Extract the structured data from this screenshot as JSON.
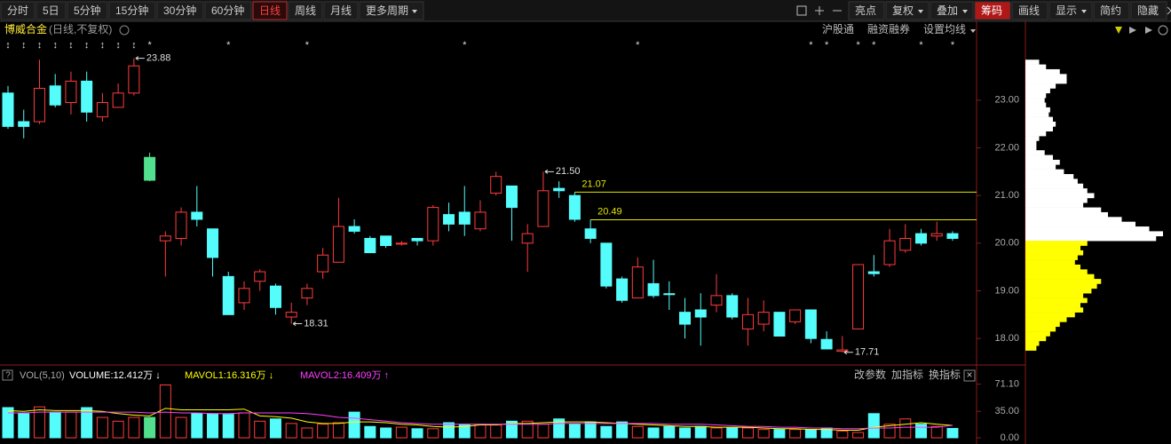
{
  "toolbar": {
    "periods": [
      "分时",
      "5日",
      "5分钟",
      "15分钟",
      "30分钟",
      "60分钟",
      "日线",
      "周线",
      "月线",
      "更多周期"
    ],
    "active_period": 6,
    "tools": [
      "亮点",
      "复权",
      "叠加",
      "筹码",
      "画线",
      "显示",
      "简约",
      "隐藏"
    ],
    "tool_dropdowns": [
      1,
      2,
      5
    ],
    "active_tool": 3
  },
  "header": {
    "stock": "博威合金",
    "mode": "(日线,不复权)",
    "links": [
      "沪股通",
      "融资融券",
      "设置均线"
    ]
  },
  "chart_data": [
    {
      "type": "candlestick",
      "up_color": "#ff3c3c",
      "down_color": "#54fcfc",
      "special_colors": {
        "9": "#52e08e"
      },
      "open": [
        23.15,
        22.55,
        22.55,
        23.3,
        22.95,
        23.4,
        22.65,
        22.85,
        23.15,
        21.8,
        20.05,
        20.1,
        20.65,
        20.3,
        19.3,
        18.75,
        19.2,
        19.1,
        18.45,
        18.85,
        19.4,
        19.6,
        20.35,
        20.1,
        20.15,
        19.98,
        20.1,
        20.05,
        20.6,
        20.65,
        20.3,
        21.05,
        21.2,
        20.0,
        20.35,
        21.15,
        21.0,
        20.3,
        20.0,
        19.25,
        18.85,
        19.15,
        18.94,
        18.55,
        18.6,
        18.7,
        18.9,
        18.2,
        18.3,
        18.55,
        18.35,
        18.6,
        17.98,
        17.73,
        18.2,
        19.4,
        19.55,
        19.85,
        20.2,
        20.15,
        20.2
      ],
      "high": [
        23.3,
        22.8,
        23.85,
        23.55,
        23.6,
        23.6,
        23.15,
        23.35,
        23.88,
        21.9,
        20.25,
        20.75,
        21.2,
        20.3,
        19.4,
        19.2,
        19.45,
        19.15,
        18.75,
        19.15,
        19.9,
        20.95,
        20.5,
        20.15,
        20.15,
        20.05,
        20.1,
        20.8,
        20.85,
        21.2,
        20.9,
        21.5,
        21.2,
        20.4,
        21.5,
        21.3,
        21.07,
        20.49,
        20.0,
        19.3,
        19.7,
        19.65,
        19.2,
        18.85,
        18.95,
        19.35,
        18.95,
        18.85,
        18.8,
        18.55,
        18.6,
        18.6,
        18.15,
        18.05,
        19.55,
        19.75,
        20.3,
        20.4,
        20.3,
        20.45,
        20.25
      ],
      "low": [
        22.4,
        22.2,
        22.5,
        22.85,
        22.7,
        22.55,
        22.55,
        22.85,
        23.1,
        21.3,
        19.3,
        19.95,
        20.35,
        19.3,
        18.5,
        18.6,
        19.0,
        18.5,
        18.31,
        18.7,
        19.25,
        19.6,
        20.2,
        19.8,
        19.9,
        19.95,
        19.95,
        19.95,
        20.25,
        20.15,
        20.25,
        21.0,
        20.05,
        19.4,
        20.35,
        20.95,
        20.45,
        20.0,
        19.05,
        18.75,
        18.85,
        18.85,
        18.6,
        18.0,
        17.85,
        18.55,
        18.4,
        17.85,
        18.15,
        18.05,
        18.3,
        17.9,
        17.78,
        17.71,
        18.2,
        19.3,
        19.5,
        19.8,
        19.95,
        20.05,
        20.05
      ],
      "close": [
        22.45,
        22.45,
        23.25,
        22.9,
        23.4,
        22.75,
        22.95,
        23.15,
        23.72,
        21.32,
        20.15,
        20.65,
        20.5,
        19.7,
        18.5,
        19.05,
        19.4,
        18.65,
        18.55,
        19.05,
        19.75,
        20.35,
        20.25,
        19.8,
        19.95,
        20.0,
        20.05,
        20.75,
        20.4,
        20.4,
        20.65,
        21.4,
        20.75,
        20.2,
        21.1,
        21.1,
        20.5,
        20.1,
        19.1,
        18.8,
        19.5,
        18.9,
        18.92,
        18.3,
        18.45,
        18.9,
        18.45,
        18.5,
        18.55,
        18.05,
        18.6,
        18.0,
        17.78,
        17.76,
        19.55,
        19.36,
        20.05,
        20.1,
        20.0,
        20.2,
        20.1
      ],
      "ylim": [
        17.5,
        24.32
      ],
      "yticks": [
        {
          "value": 18,
          "label": "18.00"
        },
        {
          "value": 19,
          "label": "19.00"
        },
        {
          "value": 20,
          "label": "20.00"
        },
        {
          "value": 21,
          "label": "21.00"
        },
        {
          "value": 22,
          "label": "22.00"
        },
        {
          "value": 23,
          "label": "23.00"
        }
      ],
      "annotations": [
        {
          "index": 8,
          "value": 23.88
        },
        {
          "index": 34,
          "value": {
            "value": 21.5,
            "label": "21.50"
          }
        },
        {
          "index": 18,
          "value": 18.31
        },
        {
          "index": 53,
          "value": 17.71
        }
      ],
      "levels": [
        {
          "value": 21.07,
          "from": 36,
          "color": "#e6e600"
        },
        {
          "value": 20.49,
          "from": 37,
          "color": "#e6e600"
        }
      ],
      "markers": [
        {
          "index": 0,
          "symbol": "↕"
        },
        {
          "index": 1,
          "symbol": "↕"
        },
        {
          "index": 2,
          "symbol": "↕"
        },
        {
          "index": 3,
          "symbol": "↕"
        },
        {
          "index": 4,
          "symbol": "↕"
        },
        {
          "index": 5,
          "symbol": "↕"
        },
        {
          "index": 6,
          "symbol": "↕"
        },
        {
          "index": 7,
          "symbol": "↕"
        },
        {
          "index": 8,
          "symbol": "↕"
        },
        {
          "index": 9,
          "symbol": "*"
        },
        {
          "index": 14,
          "symbol": "*"
        },
        {
          "index": 19,
          "symbol": "*"
        },
        {
          "index": 29,
          "symbol": "*"
        },
        {
          "index": 40,
          "symbol": "*"
        },
        {
          "index": 51,
          "symbol": "*"
        },
        {
          "index": 52,
          "symbol": "*"
        },
        {
          "index": 54,
          "symbol": "*"
        },
        {
          "index": 55,
          "symbol": "*"
        },
        {
          "index": 58,
          "symbol": "*"
        },
        {
          "index": 60,
          "symbol": "*"
        }
      ]
    },
    {
      "type": "volume",
      "help": "?",
      "title": "VOL(5,10)",
      "legend": [
        {
          "text": "VOLUME:12.412万 ↓",
          "color": "#ffffff"
        },
        {
          "text": "MAVOL1:16.316万 ↓",
          "color": "#ffff00"
        },
        {
          "text": "MAVOL2:16.409万 ↑",
          "color": "#ff40ff"
        }
      ],
      "buttons": [
        "改参数",
        "加指标",
        "换指标"
      ],
      "close": "×",
      "values": [
        40,
        32,
        41,
        34,
        34,
        40,
        27,
        22,
        27,
        27,
        70,
        27,
        32,
        32,
        31,
        33,
        22,
        25,
        19,
        13,
        18,
        20,
        34,
        15,
        13,
        14,
        12,
        12,
        20,
        18,
        18,
        17,
        22,
        22,
        18,
        25,
        18,
        21,
        15,
        21,
        15,
        13,
        15,
        13,
        15,
        13,
        13,
        13,
        11,
        11,
        11,
        11,
        13,
        9,
        7,
        32,
        18,
        25,
        18,
        15,
        12.412
      ],
      "ma": [
        {
          "color": "#ffff00",
          "values": [
            36,
            35,
            37,
            36,
            36,
            36,
            35,
            32,
            30,
            29,
            39,
            37,
            37,
            37,
            37,
            38,
            29,
            28,
            26,
            21,
            19,
            19,
            21,
            21,
            20,
            18,
            17,
            15,
            14,
            15,
            17,
            17,
            19,
            19,
            20,
            21,
            21,
            21,
            20,
            19,
            18,
            17,
            16,
            15,
            15,
            14,
            14,
            14,
            13,
            12,
            12,
            11,
            11,
            10,
            10,
            14,
            16,
            18,
            20,
            18,
            16.3
          ]
        },
        {
          "color": "#ff40ff",
          "values": [
            33,
            33,
            34,
            34,
            34,
            34,
            34,
            34,
            34,
            33,
            34,
            33,
            33,
            32,
            32,
            33,
            33,
            33,
            33,
            32,
            30,
            27,
            26,
            24,
            22,
            20,
            19,
            18,
            18,
            18,
            18,
            18,
            18,
            18,
            18,
            19,
            19,
            19,
            19,
            19,
            19,
            19,
            18,
            18,
            18,
            17,
            16,
            15,
            15,
            14,
            14,
            13,
            13,
            12,
            12,
            13,
            13,
            14,
            14,
            14,
            16.4
          ]
        }
      ],
      "ylim": [
        0,
        80
      ],
      "yticks": [
        {
          "value": 0,
          "label": "0.00"
        },
        {
          "value": 35,
          "label": "35.00"
        },
        {
          "value": 71.1,
          "label": "71.10"
        }
      ]
    },
    {
      "type": "chips",
      "above_color": "#ffffff",
      "below_color": "#ffff00",
      "prices": [
        23.8,
        23.7,
        23.6,
        23.5,
        23.4,
        23.3,
        23.2,
        23.1,
        23.0,
        22.9,
        22.8,
        22.7,
        22.6,
        22.5,
        22.4,
        22.3,
        22.2,
        22.1,
        22.0,
        21.9,
        21.8,
        21.7,
        21.6,
        21.5,
        21.4,
        21.3,
        21.2,
        21.1,
        21.0,
        20.9,
        20.8,
        20.7,
        20.6,
        20.5,
        20.4,
        20.3,
        20.2,
        20.1,
        20.0,
        19.9,
        19.8,
        19.7,
        19.6,
        19.5,
        19.4,
        19.3,
        19.2,
        19.1,
        19.0,
        18.9,
        18.8,
        18.7,
        18.6,
        18.5,
        18.4,
        18.3,
        18.2,
        18.1,
        18.0,
        17.9,
        17.8
      ],
      "values": [
        10,
        15,
        25,
        30,
        30,
        22,
        18,
        15,
        14,
        15,
        18,
        17,
        20,
        22,
        20,
        15,
        10,
        8,
        8,
        14,
        20,
        25,
        22,
        28,
        35,
        38,
        42,
        45,
        50,
        45,
        42,
        55,
        60,
        70,
        80,
        90,
        100,
        95,
        45,
        40,
        42,
        38,
        36,
        40,
        45,
        50,
        55,
        52,
        48,
        42,
        45,
        40,
        42,
        36,
        30,
        25,
        22,
        18,
        15,
        10,
        8
      ]
    }
  ]
}
